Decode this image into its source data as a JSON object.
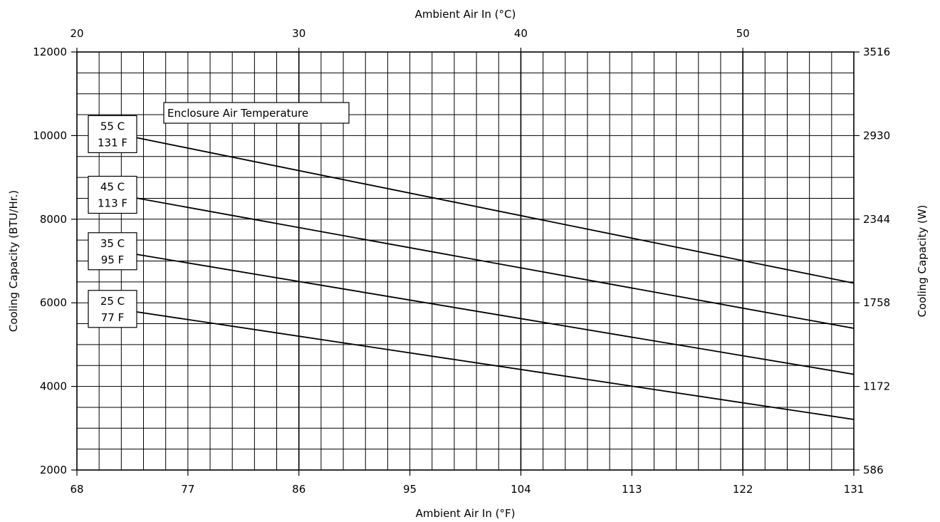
{
  "chart_data": {
    "type": "line",
    "title": "",
    "top_axis": {
      "label": "Ambient Air In (°C)",
      "ticks": [
        "20",
        "30",
        "40",
        "50"
      ],
      "tick_values": [
        20,
        30,
        40,
        50
      ]
    },
    "bottom_axis": {
      "label": "Ambient Air In (°F)",
      "ticks": [
        "68",
        "77",
        "86",
        "95",
        "104",
        "113",
        "122",
        "131"
      ],
      "tick_values": [
        68,
        77,
        86,
        95,
        104,
        113,
        122,
        131
      ],
      "xlim": [
        68,
        131
      ]
    },
    "left_axis": {
      "label": "Cooling Capacity (BTU/Hr.)",
      "ticks": [
        "12000",
        "10000",
        "8000",
        "6000",
        "4000",
        "2000"
      ],
      "tick_values": [
        12000,
        10000,
        8000,
        6000,
        4000,
        2000
      ],
      "ylim": [
        2000,
        12000
      ]
    },
    "right_axis": {
      "label": "Cooling Capacity (W)",
      "ticks": [
        "3516",
        "2930",
        "2344",
        "1758",
        "1172",
        "586"
      ]
    },
    "legend_title": "Enclosure Air Temperature",
    "grid": true,
    "series": [
      {
        "label_lines": [
          "55 C",
          "131 F"
        ],
        "x": [
          72,
          131
        ],
        "y": [
          10000,
          6470
        ]
      },
      {
        "label_lines": [
          "45 C",
          "113 F"
        ],
        "x": [
          72,
          131
        ],
        "y": [
          8550,
          5390
        ]
      },
      {
        "label_lines": [
          "35 C",
          "95 F"
        ],
        "x": [
          72,
          131
        ],
        "y": [
          7200,
          4290
        ]
      },
      {
        "label_lines": [
          "25 C",
          "77 F"
        ],
        "x": [
          72,
          131
        ],
        "y": [
          5820,
          3210
        ]
      }
    ]
  }
}
